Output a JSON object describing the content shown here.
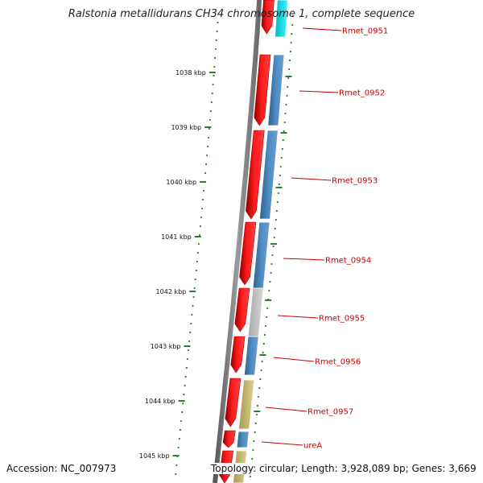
{
  "header": {
    "title": "Ralstonia metallidurans CH34 chromosome 1, complete sequence"
  },
  "footer": {
    "accession": "Accession: NC_007973",
    "topology": "Topology: circular; Length: 3,928,089 bp; Genes: 3,669"
  },
  "ticks": [
    {
      "label": "1038 kbp",
      "kbp": 1038
    },
    {
      "label": "1039 kbp",
      "kbp": 1039
    },
    {
      "label": "1040 kbp",
      "kbp": 1040
    },
    {
      "label": "1041 kbp",
      "kbp": 1041
    },
    {
      "label": "1042 kbp",
      "kbp": 1042
    },
    {
      "label": "1043 kbp",
      "kbp": 1043
    },
    {
      "label": "1044 kbp",
      "kbp": 1044
    },
    {
      "label": "1045 kbp",
      "kbp": 1045
    }
  ],
  "genes": [
    {
      "name": "Rmet_0951"
    },
    {
      "name": "Rmet_0952"
    },
    {
      "name": "Rmet_0953"
    },
    {
      "name": "Rmet_0954"
    },
    {
      "name": "Rmet_0955"
    },
    {
      "name": "Rmet_0956"
    },
    {
      "name": "Rmet_0957"
    },
    {
      "name": "ureA"
    }
  ],
  "colors": {
    "cds": "#ff1111",
    "cds_dark": "#b40000",
    "tick": "#2e7d32",
    "label": "#cc0000",
    "backbone": "#7a7a7a",
    "cyan": "#00e5ee",
    "blue": "#4a85b8",
    "gray": "#c4c4c4",
    "khaki": "#c8bd78"
  }
}
